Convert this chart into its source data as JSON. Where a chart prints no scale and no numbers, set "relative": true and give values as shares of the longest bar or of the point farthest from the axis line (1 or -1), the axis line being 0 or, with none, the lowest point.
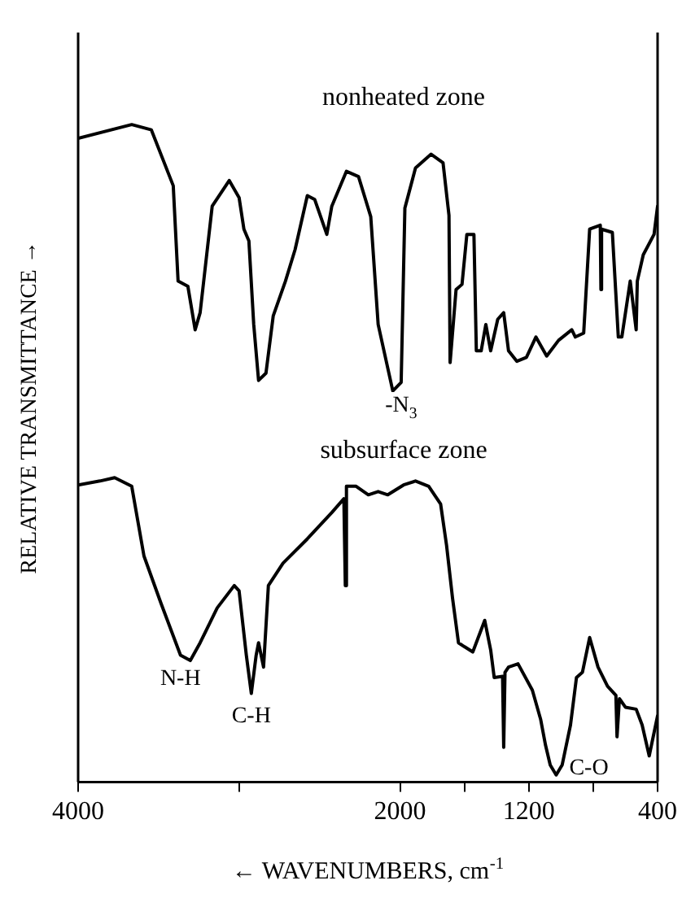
{
  "chart_data": {
    "type": "line",
    "relative": true,
    "xlabel": "← WAVENUMBERS, cm$^{-1}$",
    "ylabel": "RELATIVE TRANSMITTANCE →",
    "xlim": [
      4000,
      400
    ],
    "xticks": [
      4000,
      {
        "value": 3000,
        "label": null
      },
      2000,
      {
        "value": 1600,
        "label": null
      },
      1200,
      {
        "value": 800,
        "label": null
      },
      400
    ],
    "grid": false,
    "legend": false,
    "marker": "none",
    "line_style": "solid",
    "series": [
      {
        "name": "nonheated zone",
        "color": "#000000",
        "x": [
          4000,
          3667,
          3545,
          3409,
          3379,
          3318,
          3273,
          3242,
          3167,
          3061,
          3000,
          2970,
          2939,
          2909,
          2879,
          2833,
          2788,
          2712,
          2652,
          2576,
          2530,
          2455,
          2424,
          2333,
          2258,
          2182,
          2136,
          2045,
          1993,
          1970,
          1904,
          1807,
          1733,
          1696,
          1689,
          1652,
          1615,
          1585,
          1541,
          1526,
          1496,
          1467,
          1437,
          1393,
          1356,
          1326,
          1274,
          1215,
          1156,
          1089,
          1015,
          933,
          911,
          859,
          822,
          756,
          752,
          748,
          681,
          644,
          622,
          570,
          533,
          526,
          489,
          422,
          400
        ],
        "values": [
          0.979,
          1.0,
          0.992,
          0.907,
          0.762,
          0.754,
          0.688,
          0.714,
          0.876,
          0.915,
          0.889,
          0.841,
          0.823,
          0.696,
          0.611,
          0.622,
          0.709,
          0.762,
          0.81,
          0.892,
          0.886,
          0.833,
          0.876,
          0.929,
          0.921,
          0.86,
          0.696,
          0.595,
          0.608,
          0.873,
          0.934,
          0.955,
          0.942,
          0.862,
          0.638,
          0.749,
          0.757,
          0.833,
          0.833,
          0.656,
          0.656,
          0.696,
          0.656,
          0.704,
          0.714,
          0.656,
          0.64,
          0.646,
          0.677,
          0.648,
          0.672,
          0.688,
          0.677,
          0.683,
          0.841,
          0.847,
          0.749,
          0.841,
          0.836,
          0.677,
          0.677,
          0.762,
          0.688,
          0.762,
          0.802,
          0.833,
          0.876
        ]
      },
      {
        "name": "subsurface zone",
        "color": "#000000",
        "x": [
          4000,
          3864,
          3773,
          3667,
          3591,
          3485,
          3364,
          3303,
          3242,
          3136,
          3030,
          3000,
          2955,
          2924,
          2894,
          2879,
          2848,
          2818,
          2727,
          2576,
          2424,
          2349,
          2340,
          2333,
          2273,
          2197,
          2136,
          2076,
          1978,
          1904,
          1822,
          1748,
          1711,
          1674,
          1637,
          1600,
          1548,
          1474,
          1437,
          1415,
          1363,
          1356,
          1348,
          1326,
          1267,
          1178,
          1126,
          1096,
          1067,
          1030,
          993,
          941,
          904,
          867,
          822,
          770,
          711,
          659,
          652,
          637,
          600,
          533,
          496,
          452,
          400
        ],
        "values": [
          0.452,
          0.458,
          0.463,
          0.45,
          0.344,
          0.272,
          0.193,
          0.185,
          0.212,
          0.265,
          0.299,
          0.291,
          0.193,
          0.135,
          0.193,
          0.212,
          0.175,
          0.299,
          0.333,
          0.37,
          0.41,
          0.431,
          0.299,
          0.45,
          0.45,
          0.437,
          0.442,
          0.437,
          0.452,
          0.458,
          0.45,
          0.423,
          0.36,
          0.28,
          0.212,
          0.206,
          0.198,
          0.246,
          0.201,
          0.159,
          0.161,
          0.053,
          0.167,
          0.175,
          0.18,
          0.14,
          0.095,
          0.056,
          0.026,
          0.011,
          0.026,
          0.087,
          0.159,
          0.167,
          0.22,
          0.175,
          0.146,
          0.132,
          0.069,
          0.127,
          0.114,
          0.111,
          0.087,
          0.04,
          0.101
        ]
      }
    ],
    "annotations": [
      {
        "text": "-N$_{3}$",
        "x": 1993,
        "y": 0.608
      },
      {
        "text": "N-H",
        "x": 3364,
        "y": 0.193
      },
      {
        "text": "C-H",
        "x": 2924,
        "y": 0.135
      },
      {
        "text": "C-O",
        "x": 1030,
        "y": 0.011
      }
    ]
  }
}
